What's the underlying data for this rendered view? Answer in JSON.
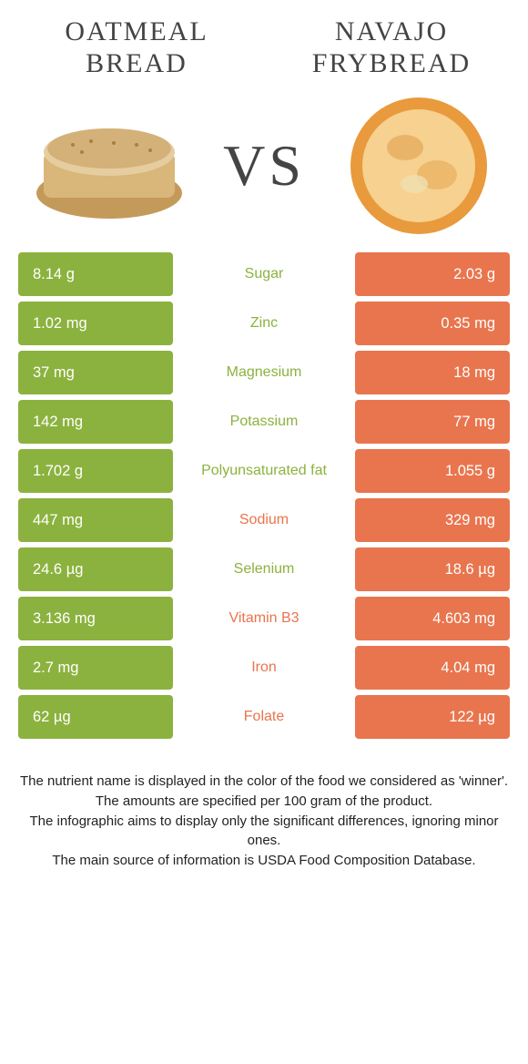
{
  "foods": {
    "left": {
      "name": "OATMEAL BREAD",
      "color": "#8bb23e"
    },
    "right": {
      "name": "NAVAJO FRYBREAD",
      "color": "#e8754e"
    }
  },
  "vs_label": "VS",
  "rows": [
    {
      "left": "8.14 g",
      "label": "Sugar",
      "right": "2.03 g",
      "winner": "left"
    },
    {
      "left": "1.02 mg",
      "label": "Zinc",
      "right": "0.35 mg",
      "winner": "left"
    },
    {
      "left": "37 mg",
      "label": "Magnesium",
      "right": "18 mg",
      "winner": "left"
    },
    {
      "left": "142 mg",
      "label": "Potassium",
      "right": "77 mg",
      "winner": "left"
    },
    {
      "left": "1.702 g",
      "label": "Polyunsaturated fat",
      "right": "1.055 g",
      "winner": "left"
    },
    {
      "left": "447 mg",
      "label": "Sodium",
      "right": "329 mg",
      "winner": "right"
    },
    {
      "left": "24.6 µg",
      "label": "Selenium",
      "right": "18.6 µg",
      "winner": "left"
    },
    {
      "left": "3.136 mg",
      "label": "Vitamin B3",
      "right": "4.603 mg",
      "winner": "right"
    },
    {
      "left": "2.7 mg",
      "label": "Iron",
      "right": "4.04 mg",
      "winner": "right"
    },
    {
      "left": "62 µg",
      "label": "Folate",
      "right": "122 µg",
      "winner": "right"
    }
  ],
  "footer_lines": [
    "The nutrient name is displayed in the color of the food we considered as 'winner'.",
    "The amounts are specified per 100 gram of the product.",
    "The infographic aims to display only the significant differences, ignoring minor ones.",
    "The main source of information is USDA Food Composition Database."
  ]
}
